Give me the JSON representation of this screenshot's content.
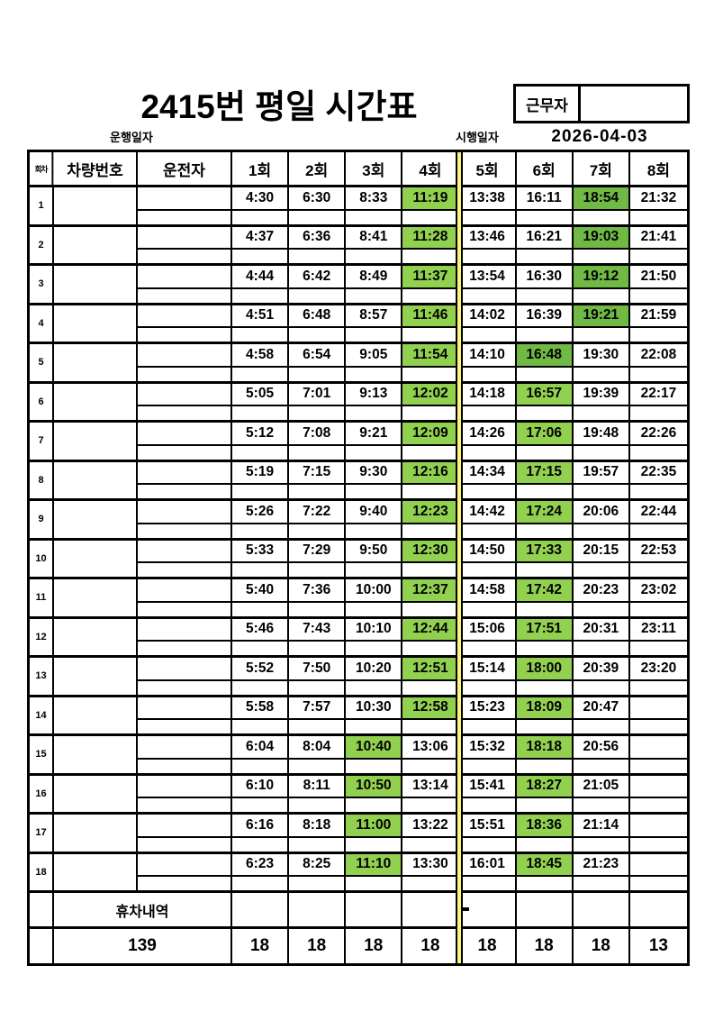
{
  "title": "2415번 평일 시간표",
  "worker_box": {
    "label": "근무자",
    "value": ""
  },
  "labels": {
    "operation_date": "운행일자",
    "effective_date": "시행일자",
    "effective_date_value": "2026-04-03"
  },
  "colors": {
    "highlight_light": "#92D050",
    "highlight_dark": "#6FB944",
    "divider_yellow": "#FAF47D"
  },
  "table": {
    "headers": [
      "회차",
      "차량번호",
      "운전자",
      "1회",
      "2회",
      "3회",
      "4회",
      "5회",
      "6회",
      "7회",
      "8회"
    ],
    "rows": [
      {
        "no": "1",
        "vehicle": "",
        "driver": "",
        "times": [
          "4:30",
          "6:30",
          "8:33",
          "11:19",
          "13:38",
          "16:11",
          "18:54",
          "21:32"
        ],
        "hl": {
          "4": "light",
          "7": "dark"
        }
      },
      {
        "no": "2",
        "vehicle": "",
        "driver": "",
        "times": [
          "4:37",
          "6:36",
          "8:41",
          "11:28",
          "13:46",
          "16:21",
          "19:03",
          "21:41"
        ],
        "hl": {
          "4": "light",
          "7": "dark"
        }
      },
      {
        "no": "3",
        "vehicle": "",
        "driver": "",
        "times": [
          "4:44",
          "6:42",
          "8:49",
          "11:37",
          "13:54",
          "16:30",
          "19:12",
          "21:50"
        ],
        "hl": {
          "4": "light",
          "7": "dark"
        }
      },
      {
        "no": "4",
        "vehicle": "",
        "driver": "",
        "times": [
          "4:51",
          "6:48",
          "8:57",
          "11:46",
          "14:02",
          "16:39",
          "19:21",
          "21:59"
        ],
        "hl": {
          "4": "light",
          "7": "dark"
        }
      },
      {
        "no": "5",
        "vehicle": "",
        "driver": "",
        "times": [
          "4:58",
          "6:54",
          "9:05",
          "11:54",
          "14:10",
          "16:48",
          "19:30",
          "22:08"
        ],
        "hl": {
          "4": "light",
          "6": "dark"
        }
      },
      {
        "no": "6",
        "vehicle": "",
        "driver": "",
        "times": [
          "5:05",
          "7:01",
          "9:13",
          "12:02",
          "14:18",
          "16:57",
          "19:39",
          "22:17"
        ],
        "hl": {
          "4": "light",
          "6": "light"
        }
      },
      {
        "no": "7",
        "vehicle": "",
        "driver": "",
        "times": [
          "5:12",
          "7:08",
          "9:21",
          "12:09",
          "14:26",
          "17:06",
          "19:48",
          "22:26"
        ],
        "hl": {
          "4": "light",
          "6": "light"
        }
      },
      {
        "no": "8",
        "vehicle": "",
        "driver": "",
        "times": [
          "5:19",
          "7:15",
          "9:30",
          "12:16",
          "14:34",
          "17:15",
          "19:57",
          "22:35"
        ],
        "hl": {
          "4": "light",
          "6": "light"
        }
      },
      {
        "no": "9",
        "vehicle": "",
        "driver": "",
        "times": [
          "5:26",
          "7:22",
          "9:40",
          "12:23",
          "14:42",
          "17:24",
          "20:06",
          "22:44"
        ],
        "hl": {
          "4": "light",
          "6": "light"
        }
      },
      {
        "no": "10",
        "vehicle": "",
        "driver": "",
        "times": [
          "5:33",
          "7:29",
          "9:50",
          "12:30",
          "14:50",
          "17:33",
          "20:15",
          "22:53"
        ],
        "hl": {
          "4": "light",
          "6": "light"
        }
      },
      {
        "no": "11",
        "vehicle": "",
        "driver": "",
        "times": [
          "5:40",
          "7:36",
          "10:00",
          "12:37",
          "14:58",
          "17:42",
          "20:23",
          "23:02"
        ],
        "hl": {
          "4": "light",
          "6": "light"
        }
      },
      {
        "no": "12",
        "vehicle": "",
        "driver": "",
        "times": [
          "5:46",
          "7:43",
          "10:10",
          "12:44",
          "15:06",
          "17:51",
          "20:31",
          "23:11"
        ],
        "hl": {
          "4": "light",
          "6": "light"
        }
      },
      {
        "no": "13",
        "vehicle": "",
        "driver": "",
        "times": [
          "5:52",
          "7:50",
          "10:20",
          "12:51",
          "15:14",
          "18:00",
          "20:39",
          "23:20"
        ],
        "hl": {
          "4": "light",
          "6": "light"
        }
      },
      {
        "no": "14",
        "vehicle": "",
        "driver": "",
        "times": [
          "5:58",
          "7:57",
          "10:30",
          "12:58",
          "15:23",
          "18:09",
          "20:47",
          ""
        ],
        "hl": {
          "4": "light",
          "6": "light"
        }
      },
      {
        "no": "15",
        "vehicle": "",
        "driver": "",
        "times": [
          "6:04",
          "8:04",
          "10:40",
          "13:06",
          "15:32",
          "18:18",
          "20:56",
          ""
        ],
        "hl": {
          "3": "light",
          "6": "light"
        }
      },
      {
        "no": "16",
        "vehicle": "",
        "driver": "",
        "times": [
          "6:10",
          "8:11",
          "10:50",
          "13:14",
          "15:41",
          "18:27",
          "21:05",
          ""
        ],
        "hl": {
          "3": "light",
          "6": "light"
        }
      },
      {
        "no": "17",
        "vehicle": "",
        "driver": "",
        "times": [
          "6:16",
          "8:18",
          "11:00",
          "13:22",
          "15:51",
          "18:36",
          "21:14",
          ""
        ],
        "hl": {
          "3": "light",
          "6": "light"
        }
      },
      {
        "no": "18",
        "vehicle": "",
        "driver": "",
        "times": [
          "6:23",
          "8:25",
          "11:10",
          "13:30",
          "16:01",
          "18:45",
          "21:23",
          ""
        ],
        "hl": {
          "3": "light",
          "6": "light"
        }
      }
    ],
    "rest_row": {
      "label": "휴차내역",
      "mark": "-"
    },
    "totals": {
      "total": "139",
      "per_round": [
        "18",
        "18",
        "18",
        "18",
        "18",
        "18",
        "18",
        "13"
      ]
    }
  }
}
